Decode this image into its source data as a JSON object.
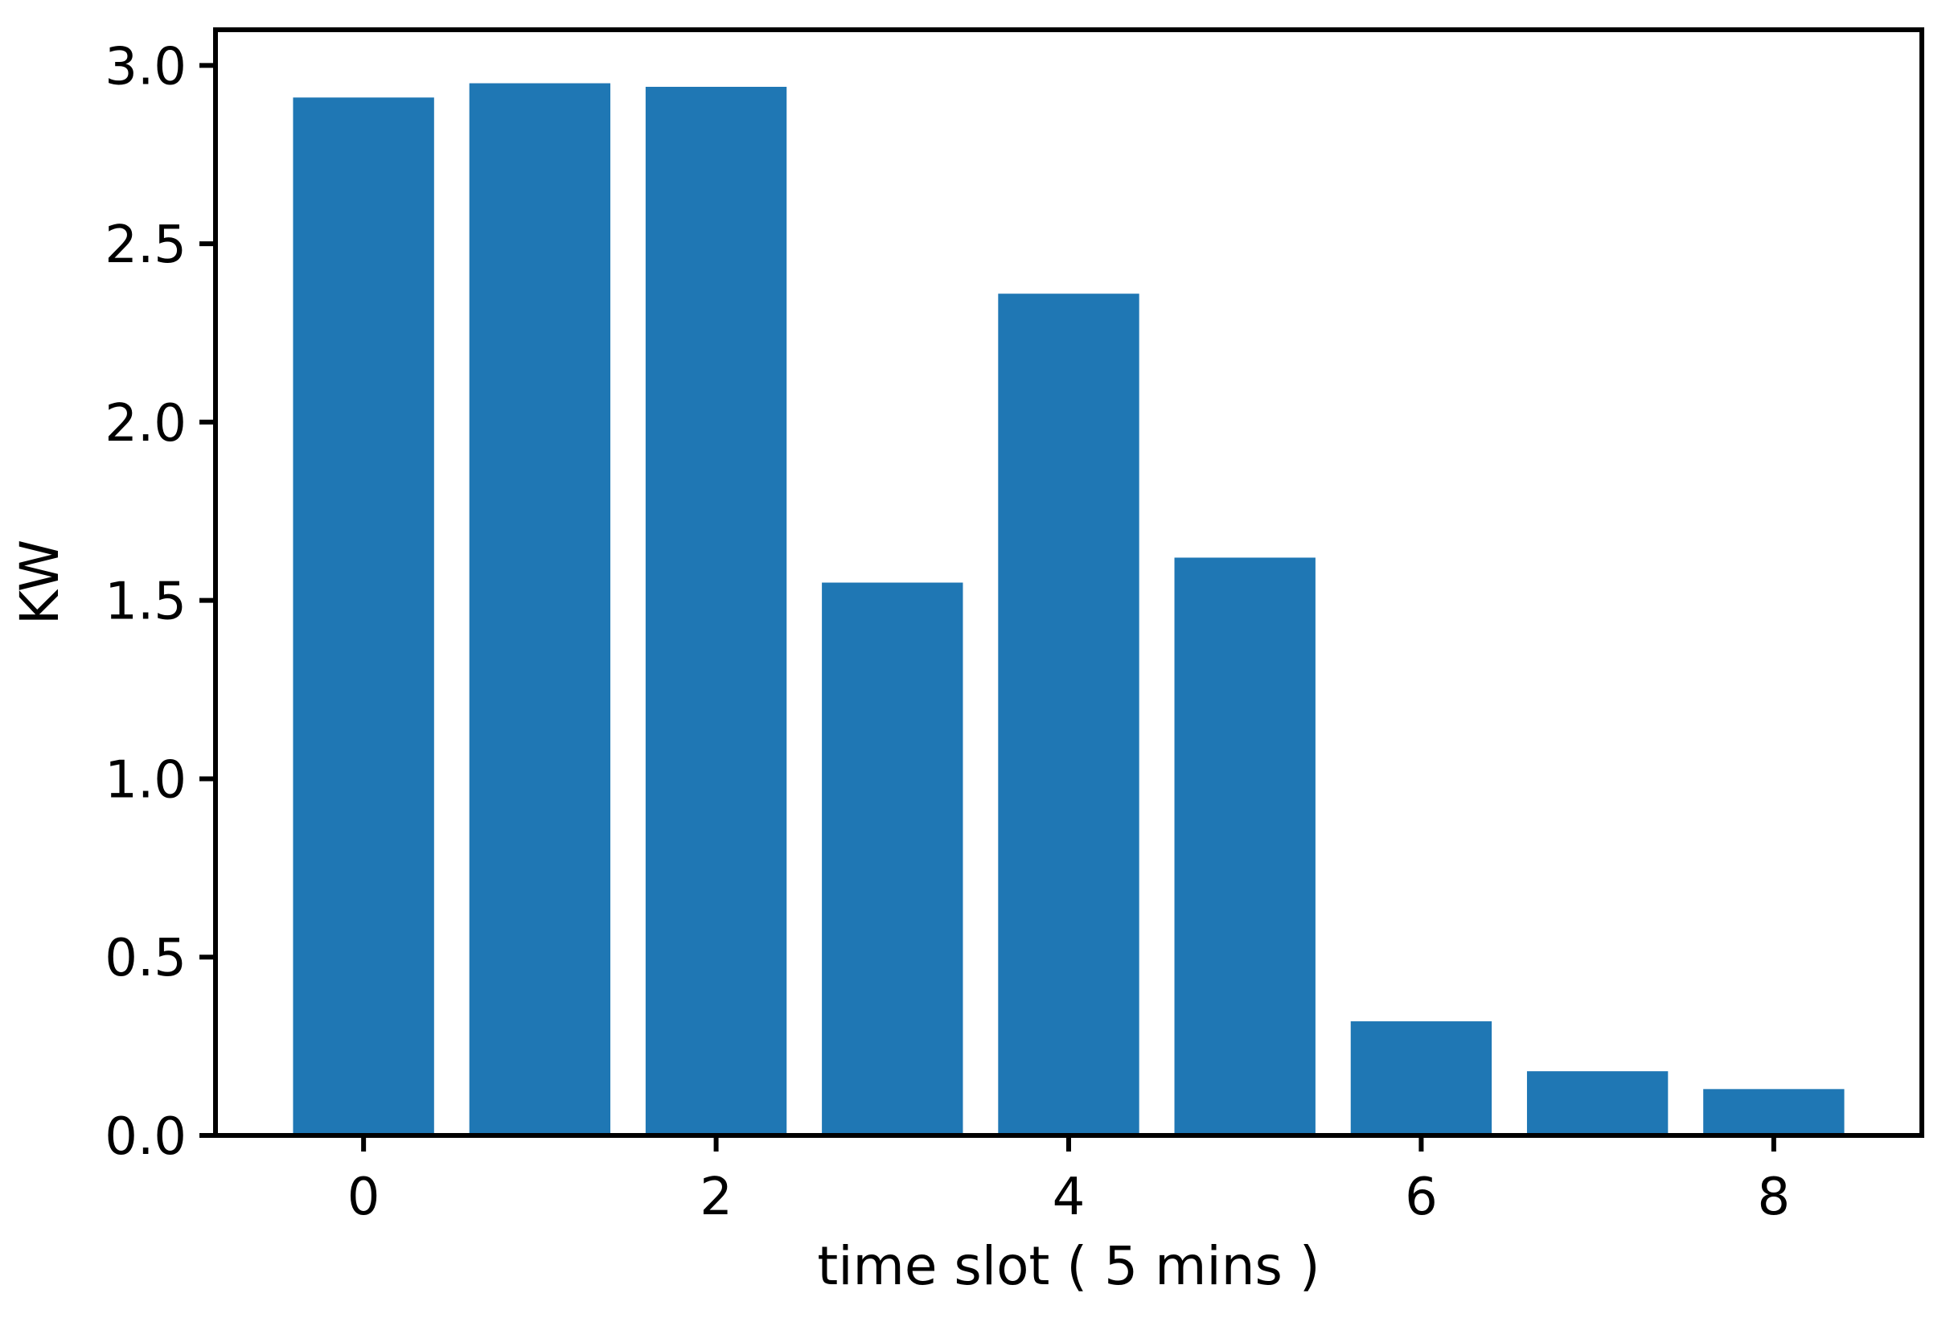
{
  "figure": {
    "background": "#ffffff"
  },
  "chart_data": {
    "type": "bar",
    "title": "",
    "xlabel": "time slot ( 5 mins )",
    "ylabel": "KW",
    "categories": [
      0,
      1,
      2,
      3,
      4,
      5,
      6,
      7,
      8
    ],
    "values": [
      2.91,
      2.95,
      2.94,
      1.55,
      2.36,
      1.62,
      0.32,
      0.18,
      0.13
    ],
    "bar_color": "#1f77b4",
    "axis_color": "#000000",
    "bar_width": 0.8,
    "xlim": [
      -0.84,
      8.84
    ],
    "ylim": [
      0,
      3.1
    ],
    "xticks": {
      "values": [
        0,
        2,
        4,
        6,
        8
      ],
      "labels": [
        "0",
        "2",
        "4",
        "6",
        "8"
      ]
    },
    "yticks": {
      "values": [
        0,
        0.5,
        1,
        1.5,
        2,
        2.5,
        3
      ],
      "labels": [
        "0.0",
        "0.5",
        "1.0",
        "1.5",
        "2.0",
        "2.5",
        "3.0"
      ]
    },
    "grid": false,
    "legend": null
  }
}
